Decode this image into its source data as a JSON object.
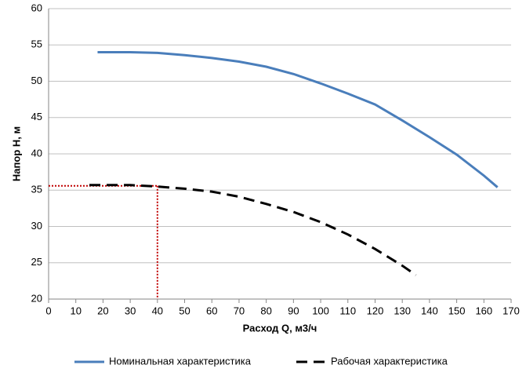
{
  "chart_data": {
    "type": "line",
    "x_label": "Расход Q, м3/ч",
    "y_label": "Напор Н, м",
    "xlim": [
      0,
      170
    ],
    "xticks": [
      0,
      10,
      20,
      30,
      40,
      50,
      60,
      70,
      80,
      90,
      100,
      110,
      120,
      130,
      140,
      150,
      160,
      170
    ],
    "ylim": [
      20,
      60
    ],
    "yticks": [
      20,
      25,
      30,
      35,
      40,
      45,
      50,
      55,
      60
    ],
    "grid": true,
    "legend": "bottom",
    "series": [
      {
        "name": "Номинальная характеристика",
        "color": "#4a7ebb",
        "dash": false,
        "x": [
          18,
          30,
          40,
          50,
          60,
          70,
          80,
          90,
          100,
          110,
          120,
          130,
          140,
          150,
          160,
          165
        ],
        "values": [
          54,
          54,
          53.9,
          53.6,
          53.2,
          52.7,
          52,
          51,
          49.7,
          48.3,
          46.8,
          44.6,
          42.3,
          39.9,
          37,
          35.4
        ]
      },
      {
        "name": "Рабочая характеристика",
        "color": "#000000",
        "dash": true,
        "x": [
          15,
          30,
          40,
          50,
          60,
          70,
          80,
          90,
          100,
          110,
          120,
          130,
          135
        ],
        "values": [
          35.7,
          35.7,
          35.5,
          35.2,
          34.8,
          34.1,
          33.1,
          32,
          30.6,
          28.9,
          26.9,
          24.6,
          23.3
        ]
      }
    ],
    "reference": {
      "x": 40,
      "y": 35.6,
      "color": "#c00000"
    }
  }
}
